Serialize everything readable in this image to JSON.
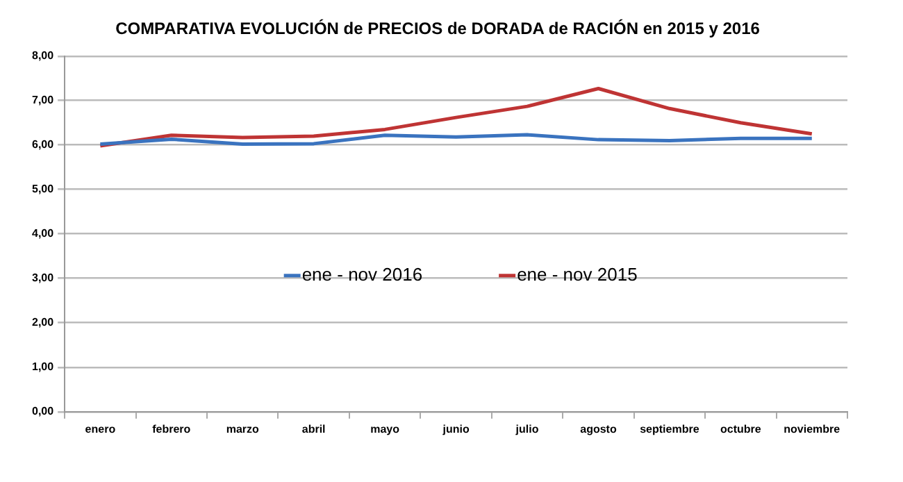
{
  "chart_data": {
    "type": "line",
    "title": "COMPARATIVA EVOLUCIÓN de PRECIOS de DORADA de RACIÓN en 2015 y 2016",
    "categories": [
      "enero",
      "febrero",
      "marzo",
      "abril",
      "mayo",
      "junio",
      "julio",
      "agosto",
      "septiembre",
      "octubre",
      "noviembre"
    ],
    "series": [
      {
        "name": "ene - nov 2016",
        "color": "#3a73bf",
        "values": [
          6.02,
          6.13,
          6.02,
          6.03,
          6.22,
          6.18,
          6.23,
          6.12,
          6.1,
          6.15,
          6.15
        ]
      },
      {
        "name": "ene - nov 2015",
        "color": "#bf3434",
        "values": [
          5.98,
          6.22,
          6.17,
          6.2,
          6.35,
          6.62,
          6.87,
          7.27,
          6.82,
          6.5,
          6.25
        ]
      }
    ],
    "ylim": [
      0,
      8
    ],
    "yticks": [
      {
        "value": 0,
        "label": "0,00"
      },
      {
        "value": 1,
        "label": "1,00"
      },
      {
        "value": 2,
        "label": "2,00"
      },
      {
        "value": 3,
        "label": "3,00"
      },
      {
        "value": 4,
        "label": "4,00"
      },
      {
        "value": 5,
        "label": "5,00"
      },
      {
        "value": 6,
        "label": "6,00"
      },
      {
        "value": 7,
        "label": "7,00"
      },
      {
        "value": 8,
        "label": "8,00"
      }
    ],
    "grid": "y",
    "legend": "center",
    "marker": "none",
    "line_style": "solid"
  }
}
